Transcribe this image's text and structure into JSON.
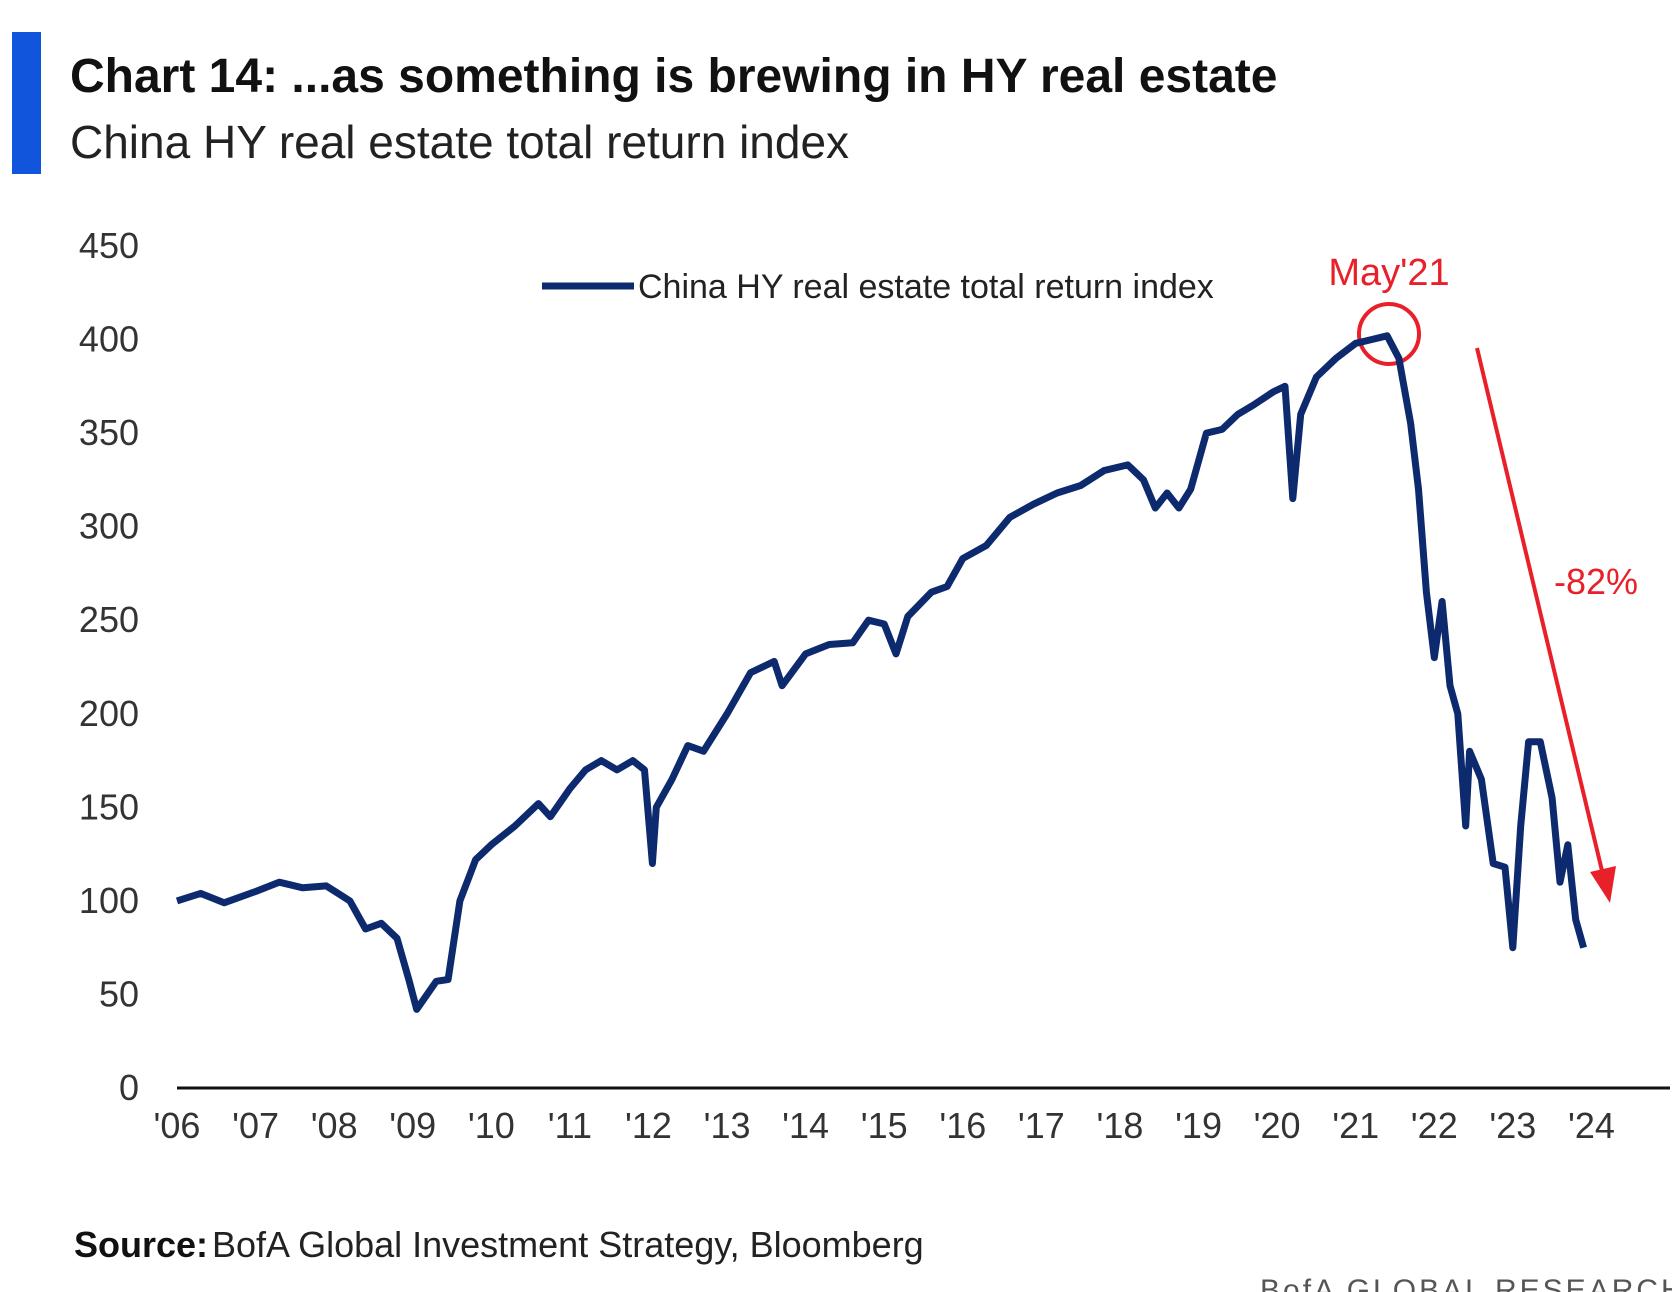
{
  "chart_data": {
    "type": "line",
    "title": "Chart 14: ...as something is brewing in HY real estate",
    "subtitle": "China HY real estate total return index",
    "x": [
      2006.0,
      2006.3,
      2006.6,
      2007.0,
      2007.3,
      2007.6,
      2007.9,
      2008.2,
      2008.4,
      2008.6,
      2008.8,
      2008.95,
      2009.05,
      2009.3,
      2009.45,
      2009.6,
      2009.8,
      2010.0,
      2010.3,
      2010.6,
      2010.75,
      2011.0,
      2011.2,
      2011.4,
      2011.6,
      2011.8,
      2011.95,
      2012.05,
      2012.1,
      2012.3,
      2012.5,
      2012.7,
      2013.0,
      2013.3,
      2013.6,
      2013.7,
      2014.0,
      2014.3,
      2014.6,
      2014.8,
      2015.0,
      2015.15,
      2015.3,
      2015.6,
      2015.8,
      2016.0,
      2016.3,
      2016.6,
      2016.9,
      2017.2,
      2017.5,
      2017.8,
      2018.1,
      2018.3,
      2018.45,
      2018.6,
      2018.75,
      2018.9,
      2019.1,
      2019.3,
      2019.5,
      2019.7,
      2019.95,
      2020.1,
      2020.2,
      2020.3,
      2020.5,
      2020.75,
      2021.0,
      2021.2,
      2021.4,
      2021.55,
      2021.7,
      2021.8,
      2021.9,
      2022.0,
      2022.1,
      2022.2,
      2022.3,
      2022.4,
      2022.45,
      2022.6,
      2022.75,
      2022.9,
      2023.0,
      2023.1,
      2023.2,
      2023.35,
      2023.5,
      2023.6,
      2023.7,
      2023.8,
      2023.9
    ],
    "series": [
      {
        "name": "China HY real estate total return index",
        "color": "#0d2a6e",
        "values": [
          100,
          104,
          99,
          105,
          110,
          107,
          108,
          100,
          85,
          88,
          80,
          58,
          42,
          57,
          58,
          100,
          122,
          130,
          140,
          152,
          145,
          160,
          170,
          175,
          170,
          175,
          170,
          120,
          150,
          165,
          183,
          180,
          200,
          222,
          228,
          215,
          232,
          237,
          238,
          250,
          248,
          232,
          252,
          265,
          268,
          283,
          290,
          305,
          312,
          318,
          322,
          330,
          333,
          325,
          310,
          318,
          310,
          320,
          350,
          352,
          360,
          365,
          372,
          375,
          315,
          360,
          380,
          390,
          398,
          400,
          402,
          390,
          355,
          320,
          265,
          230,
          260,
          215,
          200,
          140,
          180,
          165,
          120,
          118,
          75,
          140,
          185,
          185,
          155,
          110,
          130,
          90,
          75
        ]
      }
    ],
    "xlim": [
      2006,
      2025
    ],
    "xticks": [
      {
        "value": 2006,
        "label": "'06"
      },
      {
        "value": 2007,
        "label": "'07"
      },
      {
        "value": 2008,
        "label": "'08"
      },
      {
        "value": 2009,
        "label": "'09"
      },
      {
        "value": 2010,
        "label": "'10"
      },
      {
        "value": 2011,
        "label": "'11"
      },
      {
        "value": 2012,
        "label": "'12"
      },
      {
        "value": 2013,
        "label": "'13"
      },
      {
        "value": 2014,
        "label": "'14"
      },
      {
        "value": 2015,
        "label": "'15"
      },
      {
        "value": 2016,
        "label": "'16"
      },
      {
        "value": 2017,
        "label": "'17"
      },
      {
        "value": 2018,
        "label": "'18"
      },
      {
        "value": 2019,
        "label": "'19"
      },
      {
        "value": 2020,
        "label": "'20"
      },
      {
        "value": 2021,
        "label": "'21"
      },
      {
        "value": 2022,
        "label": "'22"
      },
      {
        "value": 2023,
        "label": "'23"
      },
      {
        "value": 2024,
        "label": "'24"
      }
    ],
    "ylim": [
      0,
      450
    ],
    "yticks": [
      0,
      50,
      100,
      150,
      200,
      250,
      300,
      350,
      400,
      450
    ],
    "grid": false,
    "annotations": [
      "May'21",
      "-82%"
    ],
    "annotation_color": "#e8202a",
    "source_label": "Source:",
    "source": "BofA Global Investment Strategy, Bloomberg",
    "footer": "BofA GLOBAL RESEARCH"
  }
}
